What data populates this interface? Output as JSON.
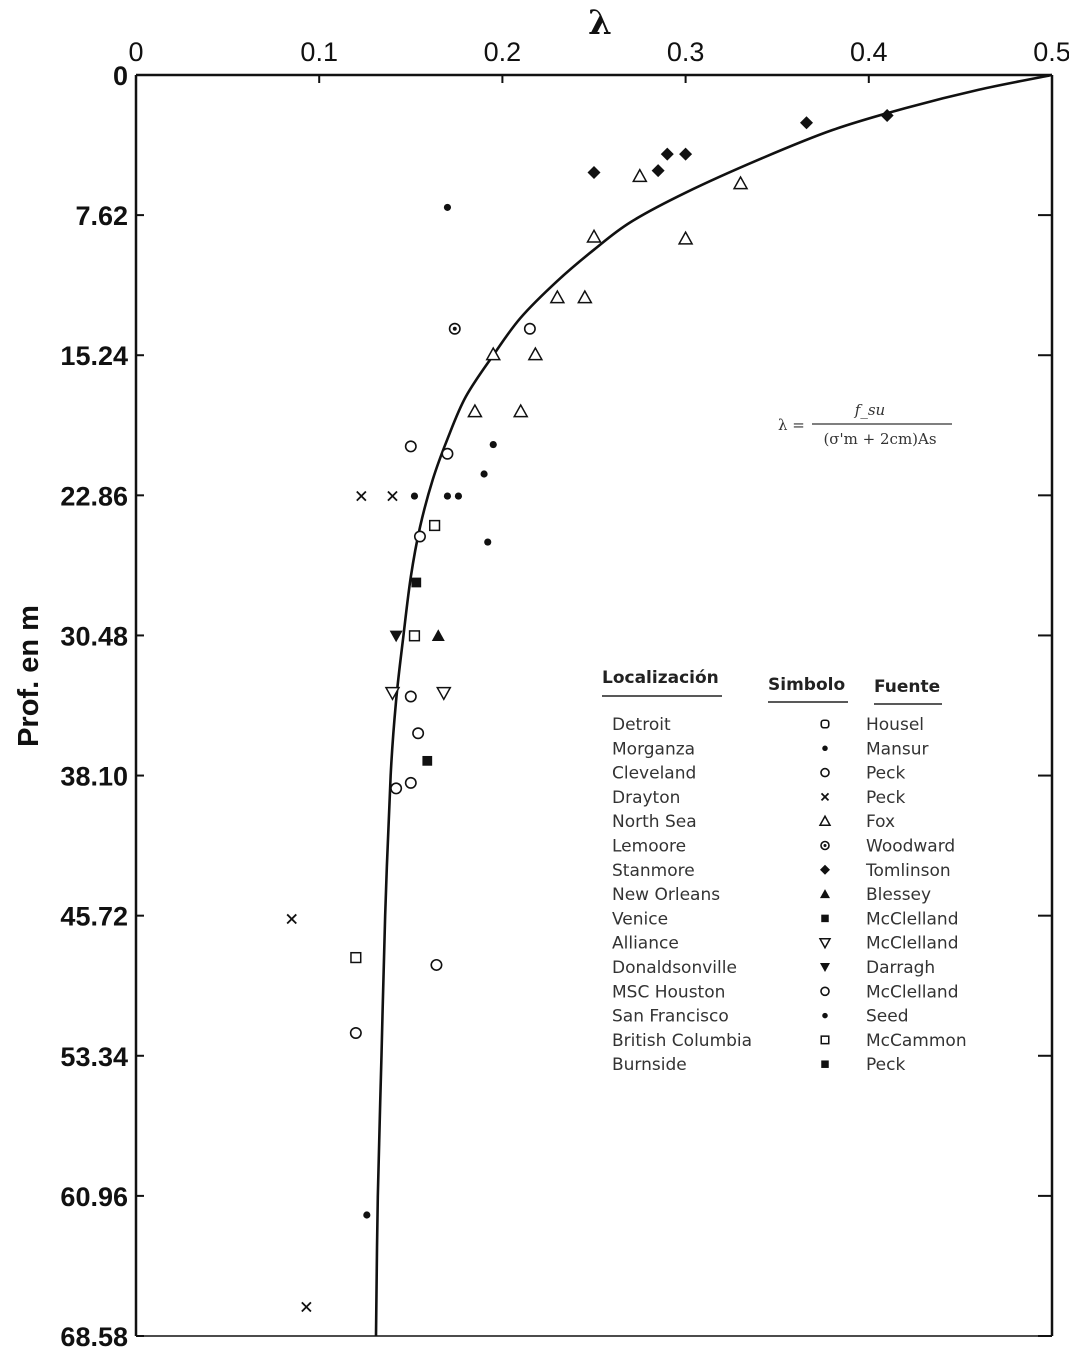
{
  "chart_data": {
    "type": "scatter",
    "xlabel": "λ",
    "ylabel": "Prof. en m",
    "xlim": [
      0,
      0.5
    ],
    "ylim": [
      0,
      68.58
    ],
    "y_inverted": true,
    "x_axis_position": "top",
    "x_ticks": [
      "0",
      "0.1",
      "0.2",
      "0.3",
      "0.4",
      "0.5"
    ],
    "y_ticks": [
      "0",
      "7.62",
      "15.24",
      "22.86",
      "30.48",
      "38.10",
      "45.72",
      "53.34",
      "60.96",
      "68.58"
    ],
    "grid": false,
    "formula": {
      "lhs": "λ =",
      "numerator": "f_su",
      "denominator": "(σ'm + 2cm)As"
    },
    "curve": {
      "name": "",
      "points": [
        [
          0.5,
          0
        ],
        [
          0.46,
          0.8
        ],
        [
          0.42,
          1.8
        ],
        [
          0.38,
          3.0
        ],
        [
          0.34,
          4.6
        ],
        [
          0.3,
          6.4
        ],
        [
          0.27,
          8.0
        ],
        [
          0.25,
          9.5
        ],
        [
          0.23,
          11.2
        ],
        [
          0.21,
          13.2
        ],
        [
          0.195,
          15.24
        ],
        [
          0.18,
          17.5
        ],
        [
          0.17,
          19.8
        ],
        [
          0.162,
          22.0
        ],
        [
          0.155,
          24.6
        ],
        [
          0.15,
          27.3
        ],
        [
          0.146,
          30.48
        ],
        [
          0.142,
          34.0
        ],
        [
          0.139,
          38.1
        ],
        [
          0.136,
          45.72
        ],
        [
          0.134,
          53.34
        ],
        [
          0.132,
          60.96
        ],
        [
          0.131,
          68.58
        ]
      ]
    },
    "legend": {
      "placement": "lower-right",
      "headers": {
        "location": "Localización",
        "symbol": "Simbolo",
        "source": "Fuente"
      },
      "entries": [
        {
          "location": "Detroit",
          "symbol": "Housel-marker",
          "source": "Housel"
        },
        {
          "location": "Morganza",
          "symbol": "small-dot",
          "source": "Mansur"
        },
        {
          "location": "Cleveland",
          "symbol": "open-circle",
          "source": "Peck"
        },
        {
          "location": "Drayton",
          "symbol": "x-mark",
          "source": "Peck"
        },
        {
          "location": "North Sea",
          "symbol": "open-triangle-up",
          "source": "Fox"
        },
        {
          "location": "Lemoore",
          "symbol": "dotted-circle",
          "source": "Woodward"
        },
        {
          "location": "Stanmore",
          "symbol": "filled-diamond",
          "source": "Tomlinson"
        },
        {
          "location": "New Orleans",
          "symbol": "filled-triangle-up",
          "source": "Blessey"
        },
        {
          "location": "Venice",
          "symbol": "filled-square",
          "source": "McClelland"
        },
        {
          "location": "Alliance",
          "symbol": "open-triangle-down",
          "source": "McClelland"
        },
        {
          "location": "Donaldsonville",
          "symbol": "filled-triangle-down",
          "source": "Darragh"
        },
        {
          "location": "MSC Houston",
          "symbol": "open-circle",
          "source": "McClelland"
        },
        {
          "location": "San Francisco",
          "symbol": "small-dot",
          "source": "Seed"
        },
        {
          "location": "British Columbia",
          "symbol": "open-square",
          "source": "McCammon"
        },
        {
          "location": "Burnside",
          "symbol": "filled-square",
          "source": "Peck"
        }
      ]
    },
    "points": [
      {
        "marker": "filled-diamond",
        "x": 0.41,
        "y": 2.2
      },
      {
        "marker": "filled-diamond",
        "x": 0.366,
        "y": 2.6
      },
      {
        "marker": "filled-diamond",
        "x": 0.3,
        "y": 4.3
      },
      {
        "marker": "filled-diamond",
        "x": 0.29,
        "y": 4.3
      },
      {
        "marker": "filled-diamond",
        "x": 0.285,
        "y": 5.2
      },
      {
        "marker": "filled-diamond",
        "x": 0.25,
        "y": 5.3
      },
      {
        "marker": "open-triangle-up",
        "x": 0.275,
        "y": 5.5
      },
      {
        "marker": "open-triangle-up",
        "x": 0.33,
        "y": 5.9
      },
      {
        "marker": "open-triangle-up",
        "x": 0.25,
        "y": 8.8
      },
      {
        "marker": "open-triangle-up",
        "x": 0.3,
        "y": 8.9
      },
      {
        "marker": "open-triangle-up",
        "x": 0.23,
        "y": 12.1
      },
      {
        "marker": "open-triangle-up",
        "x": 0.245,
        "y": 12.1
      },
      {
        "marker": "open-triangle-up",
        "x": 0.195,
        "y": 15.2
      },
      {
        "marker": "open-triangle-up",
        "x": 0.218,
        "y": 15.2
      },
      {
        "marker": "open-triangle-up",
        "x": 0.185,
        "y": 18.3
      },
      {
        "marker": "open-triangle-up",
        "x": 0.21,
        "y": 18.3
      },
      {
        "marker": "small-dot",
        "x": 0.17,
        "y": 7.2
      },
      {
        "marker": "dotted-circle",
        "x": 0.174,
        "y": 13.8
      },
      {
        "marker": "open-circle",
        "x": 0.215,
        "y": 13.8
      },
      {
        "marker": "open-circle",
        "x": 0.15,
        "y": 20.2
      },
      {
        "marker": "open-circle",
        "x": 0.17,
        "y": 20.6
      },
      {
        "marker": "small-dot",
        "x": 0.195,
        "y": 20.1
      },
      {
        "marker": "small-dot",
        "x": 0.19,
        "y": 21.7
      },
      {
        "marker": "x-mark",
        "x": 0.123,
        "y": 22.9
      },
      {
        "marker": "x-mark",
        "x": 0.14,
        "y": 22.9
      },
      {
        "marker": "small-dot",
        "x": 0.152,
        "y": 22.9
      },
      {
        "marker": "small-dot",
        "x": 0.17,
        "y": 22.9
      },
      {
        "marker": "small-dot",
        "x": 0.176,
        "y": 22.9
      },
      {
        "marker": "open-square",
        "x": 0.163,
        "y": 24.5
      },
      {
        "marker": "open-circle",
        "x": 0.155,
        "y": 25.1
      },
      {
        "marker": "small-dot",
        "x": 0.192,
        "y": 25.4
      },
      {
        "marker": "filled-square",
        "x": 0.153,
        "y": 27.6
      },
      {
        "marker": "filled-triangle-down",
        "x": 0.142,
        "y": 30.5
      },
      {
        "marker": "open-square",
        "x": 0.152,
        "y": 30.5
      },
      {
        "marker": "filled-triangle-up",
        "x": 0.165,
        "y": 30.5
      },
      {
        "marker": "open-triangle-down",
        "x": 0.14,
        "y": 33.6
      },
      {
        "marker": "open-circle",
        "x": 0.15,
        "y": 33.8
      },
      {
        "marker": "open-triangle-down",
        "x": 0.168,
        "y": 33.6
      },
      {
        "marker": "open-circle",
        "x": 0.154,
        "y": 35.8
      },
      {
        "marker": "filled-square",
        "x": 0.159,
        "y": 37.3
      },
      {
        "marker": "open-circle",
        "x": 0.15,
        "y": 38.5
      },
      {
        "marker": "open-circle",
        "x": 0.142,
        "y": 38.8
      },
      {
        "marker": "x-mark",
        "x": 0.085,
        "y": 45.9
      },
      {
        "marker": "open-square",
        "x": 0.12,
        "y": 48.0
      },
      {
        "marker": "open-circle",
        "x": 0.164,
        "y": 48.4
      },
      {
        "marker": "open-circle",
        "x": 0.12,
        "y": 52.1
      },
      {
        "marker": "small-dot",
        "x": 0.126,
        "y": 62.0
      },
      {
        "marker": "x-mark",
        "x": 0.093,
        "y": 67.0
      }
    ]
  }
}
